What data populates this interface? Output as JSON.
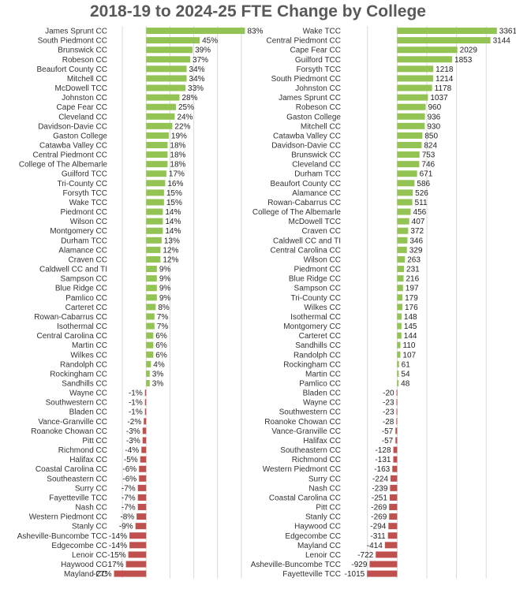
{
  "title": "2018-19 to 2024-25 FTE Change by College",
  "colors": {
    "positive": "#92c353",
    "negative": "#c0504d",
    "grid": "#d9d9d9",
    "title": "#595959"
  },
  "chart_data": [
    {
      "type": "bar",
      "orientation": "horizontal",
      "value_format": "percent",
      "xlim": [
        -30,
        90
      ],
      "grid": true,
      "categories": [
        "James Sprunt CC",
        "South Piedmont CC",
        "Brunswick CC",
        "Robeson CC",
        "Beaufort County CC",
        "Mitchell CC",
        "McDowell TCC",
        "Johnston CC",
        "Cape Fear CC",
        "Cleveland CC",
        "Davidson-Davie CC",
        "Gaston College",
        "Catawba Valley CC",
        "Central Piedmont CC",
        "College of The Albemarle",
        "Guilford TCC",
        "Tri-County CC",
        "Forsyth TCC",
        "Wake TCC",
        "Piedmont CC",
        "Wilson CC",
        "Montgomery CC",
        "Durham TCC",
        "Alamance CC",
        "Craven CC",
        "Caldwell CC and TI",
        "Sampson CC",
        "Blue Ridge CC",
        "Pamlico CC",
        "Carteret CC",
        "Rowan-Cabarrus CC",
        "Isothermal CC",
        "Central Carolina CC",
        "Martin CC",
        "Wilkes CC",
        "Randolph CC",
        "Rockingham CC",
        "Sandhills CC",
        "Wayne CC",
        "Southwestern CC",
        "Bladen CC",
        "Vance-Granville CC",
        "Roanoke Chowan CC",
        "Pitt CC",
        "Richmond CC",
        "Halifax CC",
        "Coastal Carolina CC",
        "Southeastern CC",
        "Surry CC",
        "Fayetteville TCC",
        "Nash CC",
        "Western Piedmont CC",
        "Stanly CC",
        "Asheville-Buncombe TCC",
        "Edgecombe CC",
        "Lenoir CC",
        "Haywood CC",
        "Mayland CC"
      ],
      "values": [
        83,
        45,
        39,
        37,
        34,
        34,
        33,
        28,
        25,
        24,
        22,
        19,
        18,
        18,
        18,
        17,
        16,
        15,
        15,
        14,
        14,
        14,
        13,
        12,
        12,
        9,
        9,
        9,
        9,
        8,
        7,
        7,
        6,
        6,
        6,
        4,
        3,
        3,
        -1,
        -1,
        -1,
        -2,
        -3,
        -3,
        -4,
        -5,
        -6,
        -6,
        -7,
        -7,
        -7,
        -8,
        -9,
        -14,
        -14,
        -15,
        -17,
        -27
      ],
      "labels": [
        "83%",
        "45%",
        "39%",
        "37%",
        "34%",
        "34%",
        "33%",
        "28%",
        "25%",
        "24%",
        "22%",
        "19%",
        "18%",
        "18%",
        "18%",
        "17%",
        "16%",
        "15%",
        "15%",
        "14%",
        "14%",
        "14%",
        "13%",
        "12%",
        "12%",
        "9%",
        "9%",
        "9%",
        "9%",
        "8%",
        "7%",
        "7%",
        "6%",
        "6%",
        "6%",
        "4%",
        "3%",
        "3%",
        "-1%",
        "-1%",
        "-1%",
        "-2%",
        "-3%",
        "-3%",
        "-4%",
        "-5%",
        "-6%",
        "-6%",
        "-7%",
        "-7%",
        "-7%",
        "-8%",
        "-9%",
        "-14%",
        "-14%",
        "-15%",
        "-17%",
        "-27%"
      ]
    },
    {
      "type": "bar",
      "orientation": "horizontal",
      "value_format": "number",
      "xlim": [
        -1100,
        3500
      ],
      "grid": true,
      "categories": [
        "Wake TCC",
        "Central Piedmont CC",
        "Cape Fear CC",
        "Guilford TCC",
        "Forsyth TCC",
        "South Piedmont CC",
        "Johnston CC",
        "James Sprunt CC",
        "Robeson CC",
        "Gaston College",
        "Mitchell CC",
        "Catawba Valley CC",
        "Davidson-Davie CC",
        "Brunswick CC",
        "Cleveland CC",
        "Durham TCC",
        "Beaufort County CC",
        "Alamance CC",
        "Rowan-Cabarrus CC",
        "College of The Albemarle",
        "McDowell TCC",
        "Craven CC",
        "Caldwell CC and TI",
        "Central Carolina CC",
        "Wilson CC",
        "Piedmont CC",
        "Blue Ridge CC",
        "Sampson CC",
        "Tri-County CC",
        "Wilkes CC",
        "Isothermal CC",
        "Montgomery CC",
        "Carteret CC",
        "Sandhills CC",
        "Randolph CC",
        "Rockingham CC",
        "Martin CC",
        "Pamlico CC",
        "Bladen CC",
        "Wayne CC",
        "Southwestern CC",
        "Roanoke Chowan CC",
        "Vance-Granville CC",
        "Halifax CC",
        "Southeastern CC",
        "Richmond CC",
        "Western Piedmont CC",
        "Surry CC",
        "Nash CC",
        "Coastal Carolina CC",
        "Pitt CC",
        "Stanly CC",
        "Haywood CC",
        "Edgecombe CC",
        "Mayland CC",
        "Lenoir CC",
        "Asheville-Buncombe TCC",
        "Fayetteville TCC"
      ],
      "values": [
        3361,
        3144,
        2029,
        1853,
        1218,
        1214,
        1178,
        1037,
        960,
        936,
        930,
        850,
        824,
        753,
        746,
        671,
        586,
        526,
        511,
        456,
        407,
        372,
        346,
        329,
        263,
        231,
        216,
        197,
        179,
        176,
        148,
        145,
        144,
        110,
        107,
        61,
        54,
        48,
        -20,
        -23,
        -23,
        -28,
        -57,
        -57,
        -128,
        -131,
        -163,
        -224,
        -239,
        -251,
        -269,
        -269,
        -294,
        -311,
        -414,
        -722,
        -929,
        -1015
      ],
      "labels": [
        "3361",
        "3144",
        "2029",
        "1853",
        "1218",
        "1214",
        "1178",
        "1037",
        "960",
        "936",
        "930",
        "850",
        "824",
        "753",
        "746",
        "671",
        "586",
        "526",
        "511",
        "456",
        "407",
        "372",
        "346",
        "329",
        "263",
        "231",
        "216",
        "197",
        "179",
        "176",
        "148",
        "145",
        "144",
        "110",
        "107",
        "61",
        "54",
        "48",
        "-20",
        "-23",
        "-23",
        "-28",
        "-57",
        "-57",
        "-128",
        "-131",
        "-163",
        "-224",
        "-239",
        "-251",
        "-269",
        "-269",
        "-294",
        "-311",
        "-414",
        "-722",
        "-929",
        "-1015"
      ]
    }
  ]
}
